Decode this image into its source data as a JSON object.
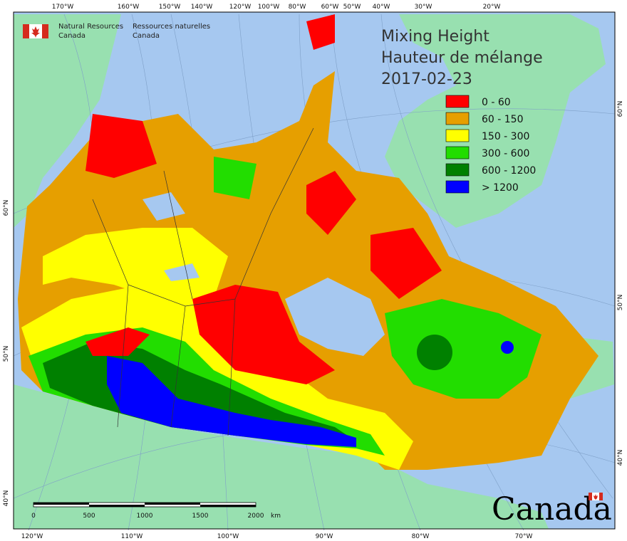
{
  "agency": {
    "en_line1": "Natural Resources",
    "en_line2": "Canada",
    "fr_line1": "Ressources naturelles",
    "fr_line2": "Canada",
    "flag_icon": "canada-flag-icon"
  },
  "title": {
    "en": "Mixing Height",
    "fr": "Hauteur de mélange",
    "date": "2017-02-23"
  },
  "legend": [
    {
      "label": "0 - 60",
      "color": "#ff0000"
    },
    {
      "label": "60 - 150",
      "color": "#e69f00"
    },
    {
      "label": "150 - 300",
      "color": "#ffff00"
    },
    {
      "label": "300 - 600",
      "color": "#22dd00"
    },
    {
      "label": "600 - 1200",
      "color": "#008000"
    },
    {
      "label": "> 1200",
      "color": "#0000ff"
    }
  ],
  "top_lon_labels": [
    "170°W",
    "160°W",
    "150°W",
    "140°W",
    "120°W",
    "100°W",
    "80°W",
    "60°W",
    "50°W",
    "40°W",
    "30°W",
    "20°W"
  ],
  "bottom_lon_labels": [
    "120°W",
    "110°W",
    "100°W",
    "90°W",
    "80°W",
    "70°W"
  ],
  "left_lat_labels": [
    "60°N",
    "50°N",
    "40°N"
  ],
  "right_lat_labels": [
    "60°N",
    "50°N",
    "40°N"
  ],
  "scale_bar": {
    "ticks": [
      "0",
      "500",
      "1000",
      "1500",
      "2000"
    ],
    "unit": "km"
  },
  "wordmark": "Canada",
  "colors": {
    "water": "#a6c8f0",
    "foreign_land": "#98e0b0"
  }
}
